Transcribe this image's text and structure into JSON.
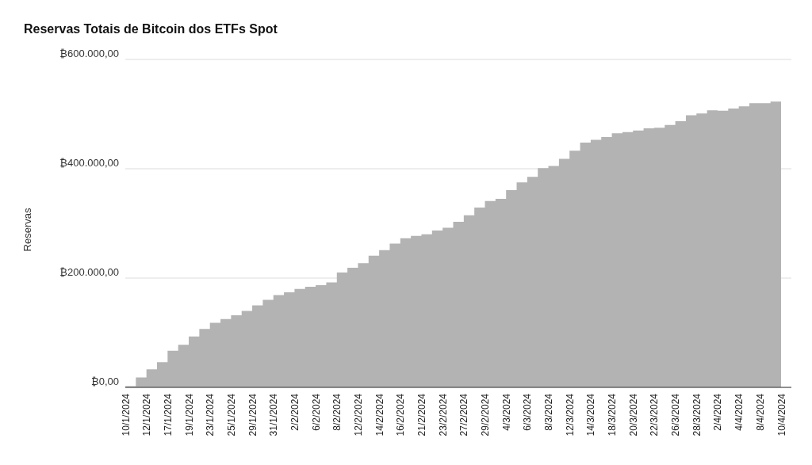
{
  "chart_data": {
    "type": "step",
    "title": "Reservas Totais de Bitcoin dos ETFs Spot",
    "ylabel": "Reservas",
    "categories": [
      "10/1/2024",
      null,
      "12/1/2024",
      null,
      "17/1/2024",
      null,
      "19/1/2024",
      null,
      "23/1/2024",
      null,
      "25/1/2024",
      null,
      "29/1/2024",
      null,
      "31/1/2024",
      null,
      "2/2/2024",
      null,
      "6/2/2024",
      null,
      "8/2/2024",
      null,
      "12/2/2024",
      null,
      "14/2/2024",
      null,
      "16/2/2024",
      null,
      "21/2/2024",
      null,
      "23/2/2024",
      null,
      "27/2/2024",
      null,
      "29/2/2024",
      null,
      "4/3/2024",
      null,
      "6/3/2024",
      null,
      "8/3/2024",
      null,
      "12/3/2024",
      null,
      "14/3/2024",
      null,
      "18/3/2024",
      null,
      "20/3/2024",
      null,
      "22/3/2024",
      null,
      "26/3/2024",
      null,
      "28/3/2024",
      null,
      "2/4/2024",
      null,
      "4/4/2024",
      null,
      "8/4/2024",
      null,
      "10/4/2024"
    ],
    "series": [
      {
        "type": "area",
        "color": "#b3b3b3",
        "values": [
          2000,
          18000,
          33000,
          46000,
          67000,
          78000,
          93000,
          107000,
          118000,
          125000,
          132000,
          140000,
          150000,
          160000,
          169000,
          174000,
          180000,
          184000,
          187000,
          192000,
          210000,
          219000,
          227000,
          241000,
          251000,
          263000,
          273000,
          277000,
          280000,
          287000,
          292000,
          303000,
          315000,
          329000,
          341000,
          345000,
          361000,
          375000,
          385000,
          401000,
          405000,
          418000,
          433000,
          448000,
          453000,
          458000,
          465000,
          467000,
          470000,
          474000,
          475000,
          480000,
          487000,
          498000,
          501000,
          507000,
          506000,
          510000,
          514000,
          520000,
          520000,
          523000,
          523000
        ]
      }
    ],
    "ylim": [
      0,
      600000
    ],
    "yticks": [
      {
        "value": 0,
        "label": "₿0,00"
      },
      {
        "value": 200000,
        "label": "₿200.000,00"
      },
      {
        "value": 400000,
        "label": "₿400.000,00"
      },
      {
        "value": 600000,
        "label": "₿600.000,00"
      }
    ],
    "grid": "y",
    "legend": false
  }
}
